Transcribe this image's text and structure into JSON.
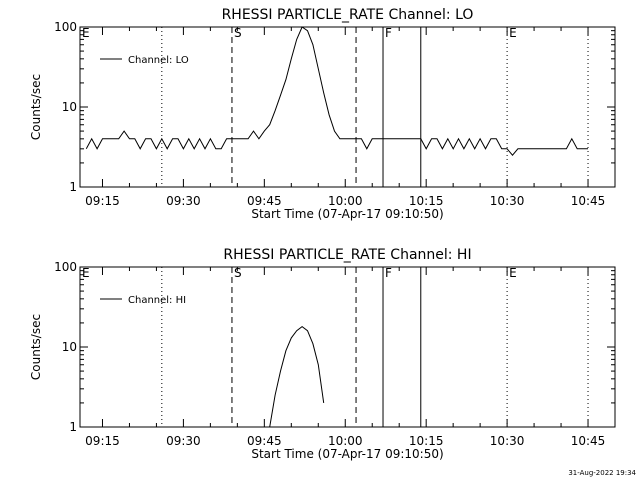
{
  "chart_data": [
    {
      "type": "line",
      "title": "RHESSI PARTICLE_RATE Channel: LO",
      "xlabel": "Start Time (07-Apr-17 09:10:50)",
      "ylabel": "Counts/sec",
      "y_scale": "log",
      "ylim": [
        1,
        100
      ],
      "xlim": [
        "09:10:50",
        "10:50:00"
      ],
      "x_tick_labels": [
        "09:15",
        "09:30",
        "09:45",
        "10:00",
        "10:15",
        "10:30",
        "10:45"
      ],
      "y_tick_labels": [
        "1",
        "10",
        "100"
      ],
      "legend": {
        "placement": "top-left",
        "entries": [
          "Channel: LO"
        ]
      },
      "markers": [
        {
          "label": "E",
          "time": "09:10:50",
          "style": "dotted"
        },
        {
          "label": "",
          "time": "09:26:00",
          "style": "dotted"
        },
        {
          "label": "S",
          "time": "09:39:00",
          "style": "dashed"
        },
        {
          "label": "",
          "time": "10:02:00",
          "style": "dashed"
        },
        {
          "label": "F",
          "time": "10:07:00",
          "style": "solid"
        },
        {
          "label": "",
          "time": "10:14:00",
          "style": "solid"
        },
        {
          "label": "E",
          "time": "10:30:00",
          "style": "dotted"
        },
        {
          "label": "",
          "time": "10:45:00",
          "style": "dotted"
        }
      ],
      "series": [
        {
          "name": "Channel: LO",
          "x": [
            "09:12:00",
            "09:13:00",
            "09:14:00",
            "09:15:00",
            "09:16:00",
            "09:17:00",
            "09:18:00",
            "09:19:00",
            "09:20:00",
            "09:21:00",
            "09:22:00",
            "09:23:00",
            "09:24:00",
            "09:25:00",
            "09:26:00",
            "09:27:00",
            "09:28:00",
            "09:29:00",
            "09:30:00",
            "09:31:00",
            "09:32:00",
            "09:33:00",
            "09:34:00",
            "09:35:00",
            "09:36:00",
            "09:37:00",
            "09:38:00",
            "09:39:00",
            "09:40:00",
            "09:41:00",
            "09:42:00",
            "09:43:00",
            "09:44:00",
            "09:45:00",
            "09:46:00",
            "09:47:00",
            "09:48:00",
            "09:49:00",
            "09:50:00",
            "09:51:00",
            "09:52:00",
            "09:53:00",
            "09:54:00",
            "09:55:00",
            "09:56:00",
            "09:57:00",
            "09:58:00",
            "09:59:00",
            "10:00:00",
            "10:01:00",
            "10:02:00",
            "10:03:00",
            "10:04:00",
            "10:05:00",
            "10:06:00",
            "10:07:00",
            "10:08:00",
            "10:09:00",
            "10:10:00",
            "10:11:00",
            "10:12:00",
            "10:13:00",
            "10:14:00",
            "10:15:00",
            "10:16:00",
            "10:17:00",
            "10:18:00",
            "10:19:00",
            "10:20:00",
            "10:21:00",
            "10:22:00",
            "10:23:00",
            "10:24:00",
            "10:25:00",
            "10:26:00",
            "10:27:00",
            "10:28:00",
            "10:29:00",
            "10:30:00",
            "10:31:00",
            "10:32:00",
            "10:33:00",
            "10:34:00",
            "10:35:00",
            "10:36:00",
            "10:37:00",
            "10:38:00",
            "10:39:00",
            "10:40:00",
            "10:41:00",
            "10:42:00",
            "10:43:00",
            "10:44:00",
            "10:45:00"
          ],
          "y": [
            3,
            4,
            3,
            4,
            4,
            4,
            4,
            5,
            4,
            4,
            3,
            4,
            4,
            3,
            4,
            3,
            4,
            4,
            3,
            4,
            3,
            4,
            3,
            4,
            3,
            3,
            4,
            4,
            4,
            4,
            4,
            5,
            4,
            5,
            6,
            9,
            14,
            22,
            40,
            70,
            100,
            90,
            60,
            30,
            15,
            8,
            5,
            4,
            4,
            4,
            4,
            4,
            3,
            4,
            4,
            4,
            4,
            4,
            4,
            4,
            4,
            4,
            4,
            3,
            4,
            4,
            3,
            4,
            3,
            4,
            3,
            4,
            3,
            4,
            3,
            4,
            4,
            3,
            3,
            2.5,
            3,
            3,
            3,
            3,
            3,
            3,
            3,
            3,
            3,
            3,
            4,
            3,
            3,
            3
          ]
        }
      ]
    },
    {
      "type": "line",
      "title": "RHESSI PARTICLE_RATE Channel: HI",
      "xlabel": "Start Time (07-Apr-17 09:10:50)",
      "ylabel": "Counts/sec",
      "y_scale": "log",
      "ylim": [
        1,
        100
      ],
      "xlim": [
        "09:10:50",
        "10:50:00"
      ],
      "x_tick_labels": [
        "09:15",
        "09:30",
        "09:45",
        "10:00",
        "10:15",
        "10:30",
        "10:45"
      ],
      "y_tick_labels": [
        "1",
        "10",
        "100"
      ],
      "legend": {
        "placement": "top-left",
        "entries": [
          "Channel: HI"
        ]
      },
      "markers": [
        {
          "label": "E",
          "time": "09:10:50",
          "style": "dotted"
        },
        {
          "label": "",
          "time": "09:26:00",
          "style": "dotted"
        },
        {
          "label": "S",
          "time": "09:39:00",
          "style": "dashed"
        },
        {
          "label": "",
          "time": "10:02:00",
          "style": "dashed"
        },
        {
          "label": "F",
          "time": "10:07:00",
          "style": "solid"
        },
        {
          "label": "",
          "time": "10:14:00",
          "style": "solid"
        },
        {
          "label": "E",
          "time": "10:30:00",
          "style": "dotted"
        },
        {
          "label": "",
          "time": "10:45:00",
          "style": "dotted"
        }
      ],
      "series": [
        {
          "name": "Channel: HI",
          "x": [
            "09:46:00",
            "09:47:00",
            "09:48:00",
            "09:49:00",
            "09:50:00",
            "09:51:00",
            "09:52:00",
            "09:53:00",
            "09:54:00",
            "09:55:00",
            "09:56:00"
          ],
          "y": [
            1,
            2.5,
            5,
            9,
            13,
            16,
            18,
            16,
            11,
            6,
            2
          ]
        }
      ]
    }
  ],
  "timestamp": "31-Aug-2022 19:34"
}
